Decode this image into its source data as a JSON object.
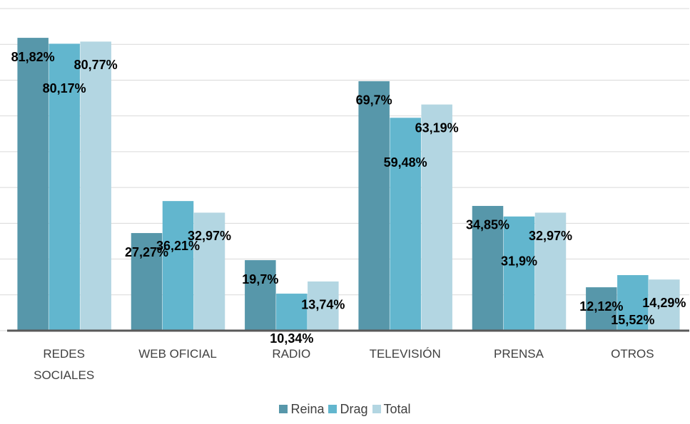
{
  "chart_data": {
    "type": "bar",
    "categories": [
      "REDES SOCIALES",
      "WEB OFICIAL",
      "RADIO",
      "TELEVISIÓN",
      "PRENSA",
      "OTROS"
    ],
    "series": [
      {
        "name": "Reina",
        "color": "#5797aa",
        "values": [
          81.82,
          27.27,
          19.7,
          69.7,
          34.85,
          12.12
        ],
        "value_labels": [
          "81,82%",
          "27,27%",
          "19,7%",
          "69,7%",
          "34,85%",
          "12,12%"
        ]
      },
      {
        "name": "Drag",
        "color": "#62b6ce",
        "values": [
          80.17,
          36.21,
          10.34,
          59.48,
          31.9,
          15.52
        ],
        "value_labels": [
          "80,17%",
          "36,21%",
          "10,34%",
          "59,48%",
          "31,9%",
          "15,52%"
        ]
      },
      {
        "name": "Total",
        "color": "#b3d6e2",
        "values": [
          80.77,
          32.97,
          13.74,
          63.19,
          32.97,
          14.29
        ],
        "value_labels": [
          "80,77%",
          "32,97%",
          "13,74%",
          "63,19%",
          "32,97%",
          "14,29%"
        ]
      }
    ],
    "ylim": [
      0,
      90
    ],
    "yticks": [
      0,
      10,
      20,
      30,
      40,
      50,
      60,
      70,
      80,
      90
    ],
    "grid": true,
    "legend": "bottom"
  }
}
